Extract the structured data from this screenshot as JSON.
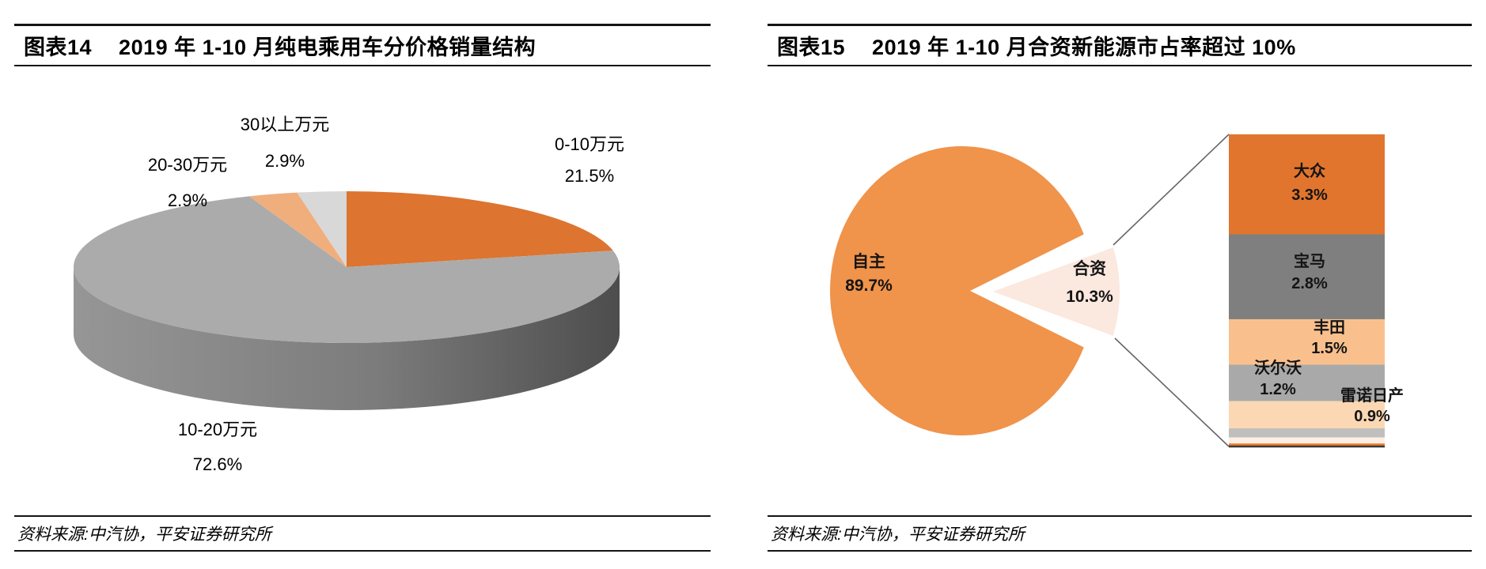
{
  "left_panel": {
    "tag": "图表14",
    "title": "2019 年 1-10 月纯电乘用车分价格销量结构",
    "source": "资料来源:中汽协，平安证券研究所",
    "chart_data": {
      "type": "pie",
      "style": "3d-exploded-none",
      "start_angle_deg": 0,
      "direction": "clockwise",
      "value_suffix": "%",
      "slices": [
        {
          "label": "0-10万元",
          "value": 21.5,
          "color": "#DD7430"
        },
        {
          "label": "10-20万元",
          "value": 72.6,
          "color": "#ABABAB"
        },
        {
          "label": "20-30万元",
          "value": 2.9,
          "color": "#F0AE7D"
        },
        {
          "label": "30以上万元",
          "value": 2.9,
          "color": "#D8D8D8"
        }
      ],
      "side_colors": [
        "#969696",
        "#7C7C7C",
        "#4D4D4D"
      ]
    }
  },
  "right_panel": {
    "tag": "图表15",
    "title": "2019 年 1-10 月合资新能源市占率超过 10%",
    "source": "资料来源:中汽协，平安证券研究所",
    "chart_data": {
      "type": "pie-of-pie",
      "value_suffix": "%",
      "main_slices": [
        {
          "label": "自主",
          "value": 89.7,
          "color": "#F0934B"
        },
        {
          "label": "合资",
          "value": 10.3,
          "color": "#FBE8DE"
        }
      ],
      "breakout_bar": [
        {
          "label": "大众",
          "value": 3.3,
          "color": "#E2752D"
        },
        {
          "label": "宝马",
          "value": 2.8,
          "color": "#7F7F7F"
        },
        {
          "label": "丰田",
          "value": 1.5,
          "color": "#F9C08D"
        },
        {
          "label": "沃尔沃",
          "value": 1.2,
          "color": "#A9A9A9"
        },
        {
          "label": "雷诺日产",
          "value": 0.9,
          "color": "#FBD8B3"
        },
        {
          "label": "",
          "value": 0.3,
          "color": "#BFBFBF"
        },
        {
          "label": "",
          "value": 0.2,
          "color": "#FDEFE3"
        },
        {
          "label": "",
          "value": 0.1,
          "color": "#ED7D31"
        }
      ],
      "connector_color": "#666666",
      "bar_baseline_color": "#3A3A3A"
    }
  }
}
